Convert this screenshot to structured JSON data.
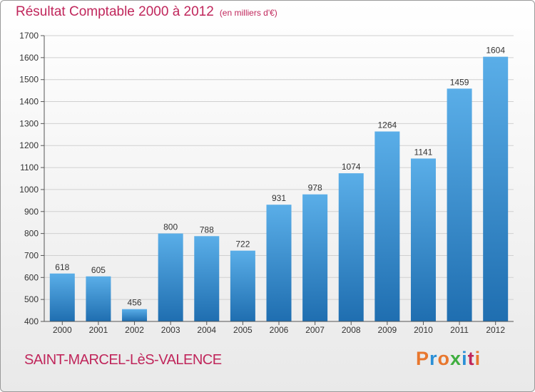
{
  "header": {
    "title": "Résultat Comptable 2000 à 2012",
    "subtitle": "(en milliers d'€)"
  },
  "footer": {
    "town": "SAINT-MARCEL-LèS-VALENCE",
    "logo_letters": [
      "P",
      "r",
      "o",
      "x",
      "i",
      "t",
      "i"
    ],
    "logo_colors": [
      "#e8772e",
      "#2a8fd6",
      "#e8772e",
      "#3fae3f",
      "#2a8fd6",
      "#c0265b",
      "#e8772e"
    ]
  },
  "colors": {
    "bar_top": "#5aaee8",
    "bar_bottom": "#1f6eb0",
    "grid": "#d0d0d0",
    "title": "#c0265b"
  },
  "chart_data": {
    "type": "bar",
    "categories": [
      "2000",
      "2001",
      "2002",
      "2003",
      "2004",
      "2005",
      "2006",
      "2007",
      "2008",
      "2009",
      "2010",
      "2011",
      "2012"
    ],
    "values": [
      618,
      605,
      456,
      800,
      788,
      722,
      931,
      978,
      1074,
      1264,
      1141,
      1459,
      1604
    ],
    "ylim": [
      400,
      1700
    ],
    "yticks": [
      400,
      500,
      600,
      700,
      800,
      900,
      1000,
      1100,
      1200,
      1300,
      1400,
      1500,
      1600,
      1700
    ],
    "grid": true
  }
}
